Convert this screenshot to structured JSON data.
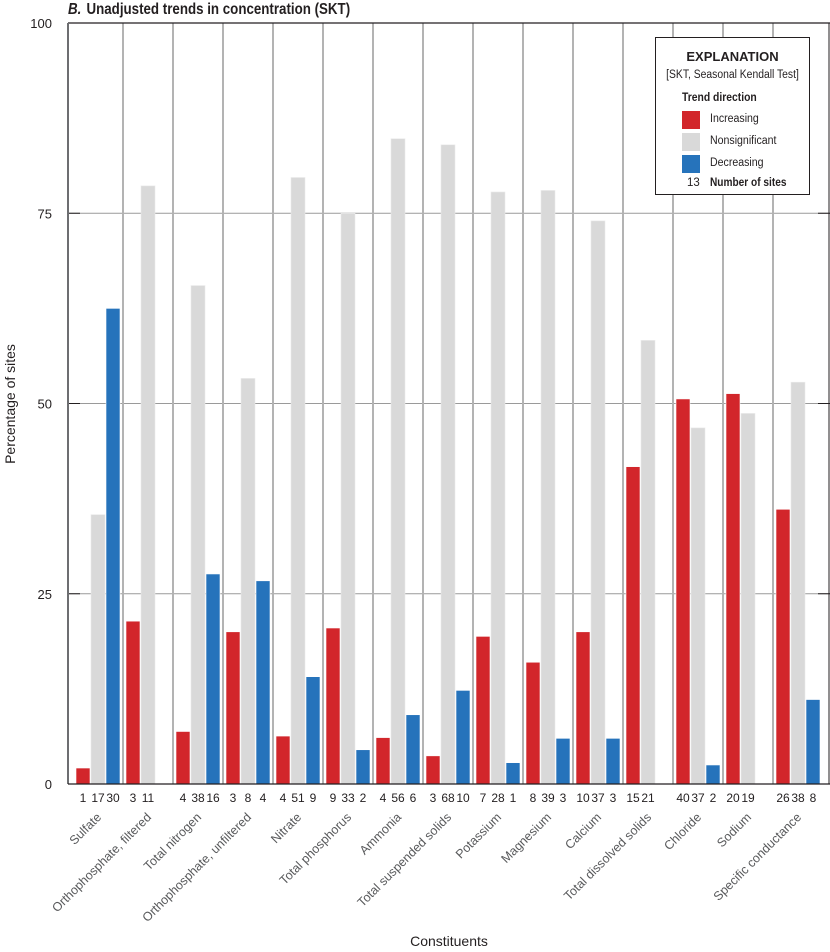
{
  "chart_data": {
    "type": "bar",
    "title_panel": "B.",
    "title": "Unadjusted trends in concentration (SKT)",
    "xlabel": "Constituents",
    "ylabel": "Percentage of sites",
    "ylim": [
      0,
      100
    ],
    "yticks": [
      0,
      25,
      50,
      75,
      100
    ],
    "grid": true,
    "legend_position": "top-right",
    "categories": [
      "Sulfate",
      "Orthophosphate, filtered",
      "Total nitrogen",
      "Orthophosphate, unfiltered",
      "Nitrate",
      "Total phosphorus",
      "Ammonia",
      "Total suspended solids",
      "Potassium",
      "Magnesium",
      "Calcium",
      "Total dissolved solids",
      "Chloride",
      "Sodium",
      "Specific conductance"
    ],
    "series": [
      {
        "name": "Increasing",
        "color": "#d2262b",
        "values": [
          2.1,
          21.4,
          6.9,
          20.0,
          6.3,
          20.5,
          6.1,
          3.7,
          19.4,
          16.0,
          20.0,
          41.7,
          50.6,
          51.3,
          36.1
        ],
        "site_counts": [
          1,
          3,
          4,
          3,
          4,
          9,
          4,
          3,
          7,
          8,
          10,
          15,
          40,
          20,
          26
        ]
      },
      {
        "name": "Nonsignificant",
        "color": "#d9d9d9",
        "values": [
          35.4,
          78.6,
          65.5,
          53.3,
          79.7,
          75.0,
          84.8,
          84.0,
          77.8,
          78.0,
          74.0,
          58.3,
          46.8,
          48.7,
          52.8
        ],
        "site_counts": [
          17,
          11,
          38,
          8,
          51,
          33,
          56,
          68,
          28,
          39,
          37,
          21,
          37,
          19,
          38
        ]
      },
      {
        "name": "Decreasing",
        "color": "#2673bb",
        "values": [
          62.5,
          null,
          27.6,
          26.7,
          14.1,
          4.5,
          9.1,
          12.3,
          2.8,
          6.0,
          6.0,
          null,
          2.5,
          null,
          11.1
        ],
        "site_counts": [
          30,
          null,
          16,
          4,
          9,
          2,
          6,
          10,
          1,
          3,
          3,
          null,
          2,
          null,
          8
        ]
      }
    ]
  },
  "legend": {
    "title": "EXPLANATION",
    "subtitle": "[SKT, Seasonal Kendall Test]",
    "heading": "Trend direction",
    "items": [
      {
        "label": "Increasing",
        "color": "#d2262b"
      },
      {
        "label": "Nonsignificant",
        "color": "#d9d9d9"
      },
      {
        "label": "Decreasing",
        "color": "#2673bb"
      }
    ],
    "count_example": "13",
    "count_label": "Number of sites"
  }
}
